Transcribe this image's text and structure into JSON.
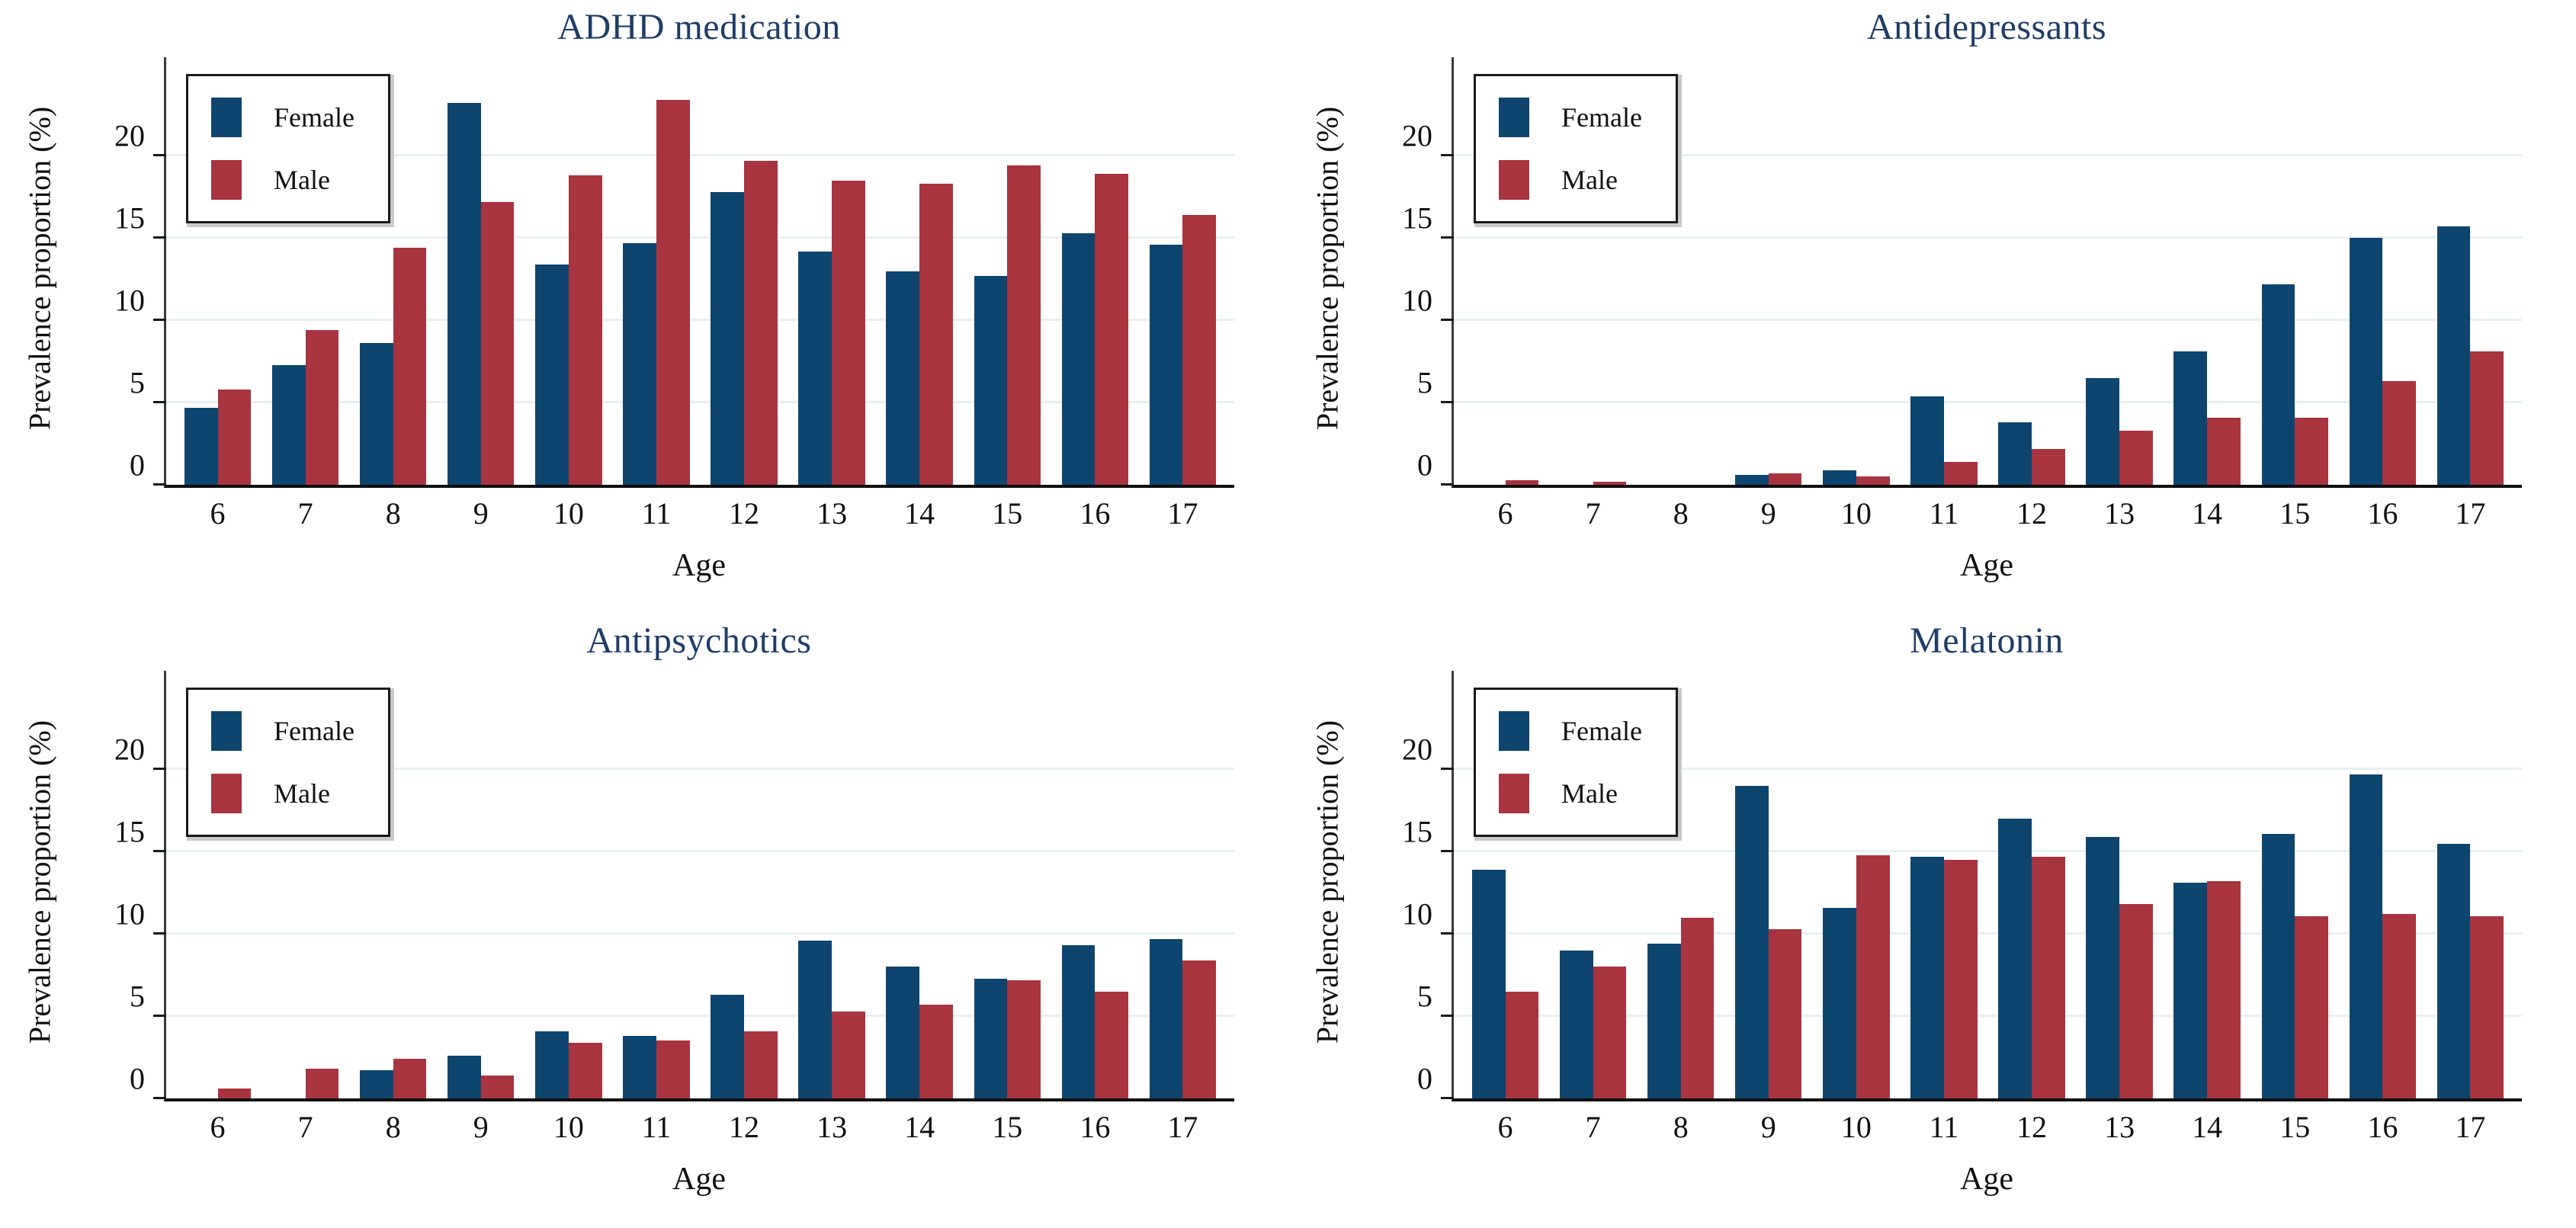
{
  "figure": {
    "ylabel": "Prevalence proportion (%)",
    "xlabel": "Age",
    "legend": {
      "female_label": "Female",
      "male_label": "Male"
    },
    "colors": {
      "female": "#0d456f",
      "male": "#a7343f",
      "title": "#1d3d6b",
      "gridline": "#e7f1f0",
      "text": "#111111"
    }
  },
  "chart_data": [
    {
      "type": "bar",
      "title": "ADHD medication",
      "xlabel": "Age",
      "ylabel": "Prevalence proportion (%)",
      "categories": [
        6,
        7,
        8,
        9,
        10,
        11,
        12,
        13,
        14,
        15,
        16,
        17
      ],
      "series": [
        {
          "name": "Female",
          "values": [
            4.7,
            7.3,
            8.6,
            23.2,
            13.4,
            14.7,
            17.8,
            14.2,
            13.0,
            12.7,
            15.3,
            14.6
          ]
        },
        {
          "name": "Male",
          "values": [
            5.8,
            9.4,
            14.4,
            17.2,
            18.8,
            23.4,
            19.7,
            18.5,
            18.3,
            19.4,
            18.9,
            16.4
          ]
        }
      ],
      "ylim": [
        0,
        26
      ],
      "yticks": [
        0,
        5,
        10,
        15,
        20
      ],
      "grid": true,
      "legend_position": "top-left"
    },
    {
      "type": "bar",
      "title": "Antidepressants",
      "xlabel": "Age",
      "ylabel": "Prevalence proportion (%)",
      "categories": [
        6,
        7,
        8,
        9,
        10,
        11,
        12,
        13,
        14,
        15,
        16,
        17
      ],
      "series": [
        {
          "name": "Female",
          "values": [
            0,
            0,
            0,
            0.6,
            0.9,
            5.4,
            3.8,
            6.5,
            8.1,
            12.2,
            15.0,
            15.7
          ]
        },
        {
          "name": "Male",
          "values": [
            0.3,
            0.2,
            0,
            0.7,
            0.5,
            1.4,
            2.2,
            3.3,
            4.1,
            4.1,
            6.3,
            8.1
          ]
        }
      ],
      "ylim": [
        0,
        26
      ],
      "yticks": [
        0,
        5,
        10,
        15,
        20
      ],
      "grid": true,
      "legend_position": "top-left"
    },
    {
      "type": "bar",
      "title": "Antipsychotics",
      "xlabel": "Age",
      "ylabel": "Prevalence proportion (%)",
      "categories": [
        6,
        7,
        8,
        9,
        10,
        11,
        12,
        13,
        14,
        15,
        16,
        17
      ],
      "series": [
        {
          "name": "Female",
          "values": [
            0,
            0,
            1.7,
            2.6,
            4.1,
            3.8,
            6.3,
            9.6,
            8.0,
            7.3,
            9.3,
            9.7
          ]
        },
        {
          "name": "Male",
          "values": [
            0.6,
            1.8,
            2.4,
            1.4,
            3.4,
            3.5,
            4.1,
            5.3,
            5.7,
            7.2,
            6.5,
            8.4
          ]
        }
      ],
      "ylim": [
        0,
        26
      ],
      "yticks": [
        0,
        5,
        10,
        15,
        20
      ],
      "grid": true,
      "legend_position": "top-left"
    },
    {
      "type": "bar",
      "title": "Melatonin",
      "xlabel": "Age",
      "ylabel": "Prevalence proportion (%)",
      "categories": [
        6,
        7,
        8,
        9,
        10,
        11,
        12,
        13,
        14,
        15,
        16,
        17
      ],
      "series": [
        {
          "name": "Female",
          "values": [
            13.9,
            9.0,
            9.4,
            19.0,
            11.6,
            14.7,
            17.0,
            15.9,
            13.1,
            16.1,
            19.7,
            15.5
          ]
        },
        {
          "name": "Male",
          "values": [
            6.5,
            8.0,
            11.0,
            10.3,
            14.8,
            14.5,
            14.7,
            11.8,
            13.2,
            11.1,
            11.2,
            11.1
          ]
        }
      ],
      "ylim": [
        0,
        26
      ],
      "yticks": [
        0,
        5,
        10,
        15,
        20
      ],
      "grid": true,
      "legend_position": "top-left"
    }
  ]
}
